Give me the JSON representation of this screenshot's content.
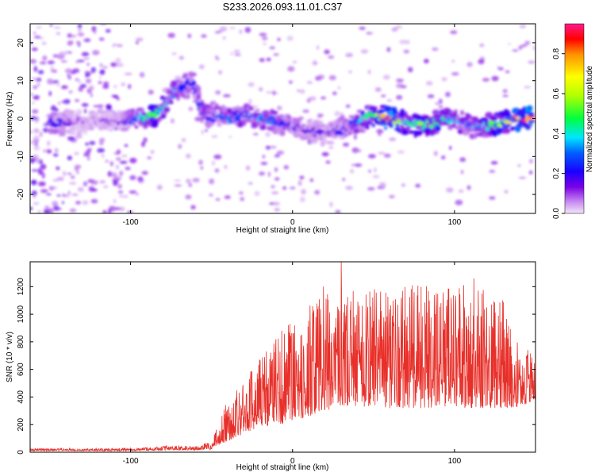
{
  "title": "S233.2026.093.11.01.C37",
  "chart_data": [
    {
      "type": "heatmap",
      "name": "spectrogram",
      "xlabel": "Height of straight line (km)",
      "ylabel": "Frequency (Hz)",
      "xlim": [
        -162,
        150
      ],
      "ylim": [
        -25,
        25
      ],
      "xticks": [
        -100,
        0,
        100
      ],
      "yticks": [
        -20,
        -10,
        0,
        10,
        20
      ],
      "colorbar": {
        "label": "Normalized spectral amplitude",
        "range": [
          0,
          0.95
        ],
        "ticks": [
          "0.0",
          "0.2",
          "0.4",
          "0.6",
          "0.8"
        ],
        "tick_values": [
          0,
          0.2,
          0.4,
          0.6,
          0.8
        ]
      },
      "ridge": {
        "x": [
          -150,
          -135,
          -120,
          -105,
          -95,
          -85,
          -80,
          -75,
          -70,
          -62,
          -55,
          -50,
          -45,
          -38,
          -30,
          -20,
          -10,
          0,
          10,
          20,
          30,
          40,
          50,
          60,
          70,
          80,
          90,
          100,
          110,
          120,
          130,
          140,
          148
        ],
        "freq": [
          -1,
          -1,
          -0.5,
          -1,
          0,
          1,
          3,
          6,
          8,
          10,
          1,
          0,
          1,
          0,
          1,
          0,
          -1,
          -2,
          -3,
          -4,
          -3,
          -1,
          1,
          0,
          -1,
          -2,
          -1,
          0,
          -2,
          -2,
          -1,
          0,
          0
        ],
        "amp": [
          0.28,
          0.1,
          0.1,
          0.12,
          0.4,
          0.55,
          0.45,
          0.35,
          0.3,
          0.2,
          0.3,
          0.25,
          0.3,
          0.35,
          0.3,
          0.35,
          0.3,
          0.2,
          0.15,
          0.15,
          0.2,
          0.35,
          0.55,
          0.9,
          0.45,
          0.55,
          0.5,
          0.35,
          0.35,
          0.45,
          0.7,
          0.9,
          0.95
        ]
      }
    },
    {
      "type": "line",
      "name": "snr",
      "xlabel": "Height of straight line (km)",
      "ylabel": "SNR (10 * v/v)",
      "xlim": [
        -162,
        150
      ],
      "ylim": [
        0,
        1380
      ],
      "xticks": [
        -100,
        0,
        100
      ],
      "yticks": [
        0,
        200,
        400,
        600,
        800,
        1000,
        1200
      ],
      "color": "#e8302a",
      "envelope": {
        "x": [
          -162,
          -130,
          -100,
          -85,
          -75,
          -60,
          -50,
          -45,
          -40,
          -30,
          -20,
          -10,
          0,
          10,
          20,
          30,
          40,
          50,
          60,
          70,
          80,
          90,
          100,
          110,
          120,
          130,
          140,
          150
        ],
        "base": [
          10,
          10,
          10,
          12,
          15,
          15,
          20,
          50,
          80,
          130,
          180,
          200,
          220,
          260,
          300,
          330,
          330,
          330,
          320,
          320,
          320,
          320,
          320,
          320,
          320,
          320,
          330,
          380
        ],
        "range": [
          18,
          18,
          20,
          30,
          35,
          30,
          60,
          180,
          300,
          380,
          520,
          650,
          750,
          800,
          850,
          900,
          820,
          880,
          860,
          880,
          920,
          860,
          880,
          920,
          850,
          800,
          500,
          300
        ]
      },
      "peaks": [
        {
          "x": 30,
          "y": 1380
        },
        {
          "x": 112,
          "y": 1260
        },
        {
          "x": 74,
          "y": 1210
        },
        {
          "x": 19,
          "y": 1200
        }
      ]
    }
  ]
}
